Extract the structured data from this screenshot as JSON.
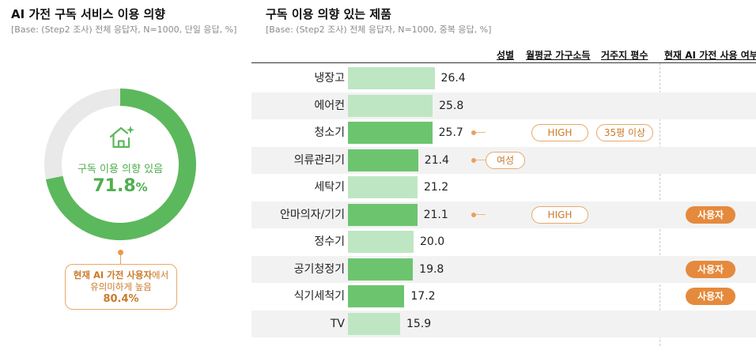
{
  "left": {
    "title": "AI 가전 구독 서비스 이용 의향",
    "subtitle": "[Base: (Step2 조사) 전체 응답자, N=1000, 단일 응답, %]",
    "caption": "구독 이용 의향 있음",
    "value": 71.8,
    "value_text": "71.8",
    "value_unit": "%",
    "icon": "smart-home-icon",
    "callout": {
      "bold": "현재 AI 가전 사용자",
      "rest": "에서",
      "line2": "유의미하게 높음",
      "value": "80.4%"
    },
    "colors": {
      "primary": "#5cb85c",
      "track": "#e9e9e9",
      "accent": "#e58a3c"
    }
  },
  "right": {
    "title": "구독 이용 의향 있는 제품",
    "subtitle": "[Base: (Step2 조사) 전체 응답자, N=1000, 중복 응답, %]",
    "headers": {
      "gender": "성별",
      "income": "월평균 가구소득",
      "area": "거주지 평수",
      "user": "현재 AI 가전 사용 여부"
    }
  },
  "chart_data": [
    {
      "type": "pie",
      "title": "AI 가전 구독 서비스 이용 의향",
      "labels": [
        "구독 이용 의향 있음",
        ""
      ],
      "values": [
        71.8,
        28.2
      ]
    },
    {
      "type": "bar",
      "orientation": "horizontal",
      "title": "구독 이용 의향 있는 제품",
      "categories": [
        "냉장고",
        "에어컨",
        "청소기",
        "의류관리기",
        "세탁기",
        "안마의자/기기",
        "정수기",
        "공기청정기",
        "식기세척기",
        "TV"
      ],
      "values": [
        26.4,
        25.8,
        25.7,
        21.4,
        21.2,
        21.1,
        20.0,
        19.8,
        17.2,
        15.9
      ],
      "value_labels": [
        "26.4",
        "25.8",
        "25.7",
        "21.4",
        "21.2",
        "21.1",
        "20.0",
        "19.8",
        "17.2",
        "15.9"
      ],
      "highlight": [
        false,
        false,
        true,
        true,
        false,
        true,
        false,
        true,
        true,
        false
      ],
      "colors": {
        "normal": "#bfe6c3",
        "highlight": "#6cc56e"
      },
      "tags": [
        {},
        {},
        {
          "income": "HIGH",
          "area": "35평 이상"
        },
        {
          "gender": "여성"
        },
        {},
        {
          "income": "HIGH",
          "user": "사용자"
        },
        {},
        {
          "user": "사용자"
        },
        {
          "user": "사용자"
        },
        {}
      ]
    }
  ]
}
